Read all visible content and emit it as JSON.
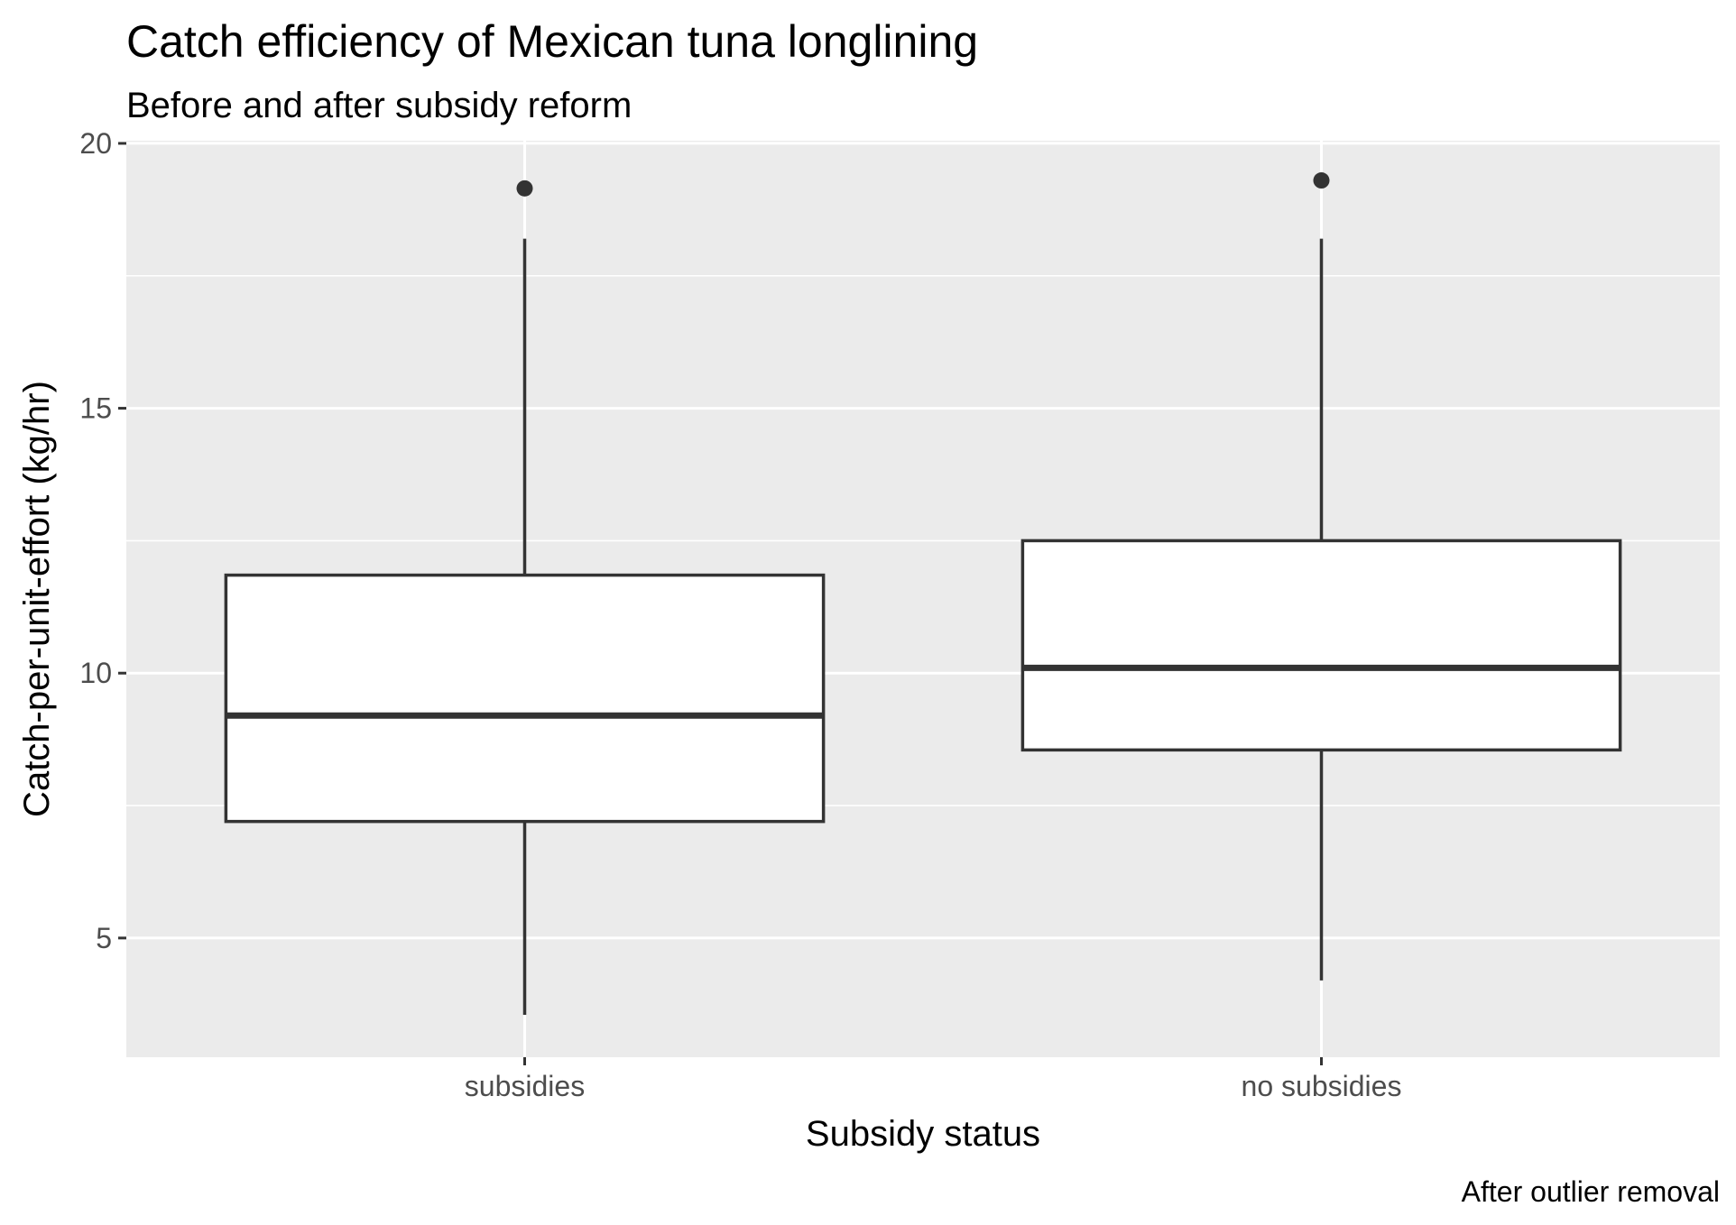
{
  "chart_data": {
    "type": "boxplot",
    "title": "Catch efficiency of Mexican tuna longlining",
    "subtitle": "Before and after subsidy reform",
    "xlabel": "Subsidy status",
    "ylabel": "Catch-per-unit-effort (kg/hr)",
    "caption": "After outlier removal",
    "ylim": [
      2.75,
      20.05
    ],
    "yticks": [
      5,
      10,
      15,
      20
    ],
    "ytick_labels": [
      "5",
      "10",
      "15",
      "20"
    ],
    "grid": true,
    "categories": [
      "subsidies",
      "no subsidies"
    ],
    "boxes": [
      {
        "category": "subsidies",
        "lower_whisker": 3.55,
        "q1": 7.2,
        "median": 9.2,
        "q3": 11.85,
        "upper_whisker": 18.2,
        "outliers": [
          19.15
        ]
      },
      {
        "category": "no subsidies",
        "lower_whisker": 4.2,
        "q1": 8.55,
        "median": 10.1,
        "q3": 12.5,
        "upper_whisker": 18.2,
        "outliers": [
          19.3
        ]
      }
    ],
    "colors": {
      "panel_background": "#ebebeb",
      "grid_major": "#ffffff",
      "grid_minor": "#f5f5f5",
      "box_fill": "#ffffff",
      "box_line": "#333333",
      "tick": "#333333"
    }
  }
}
